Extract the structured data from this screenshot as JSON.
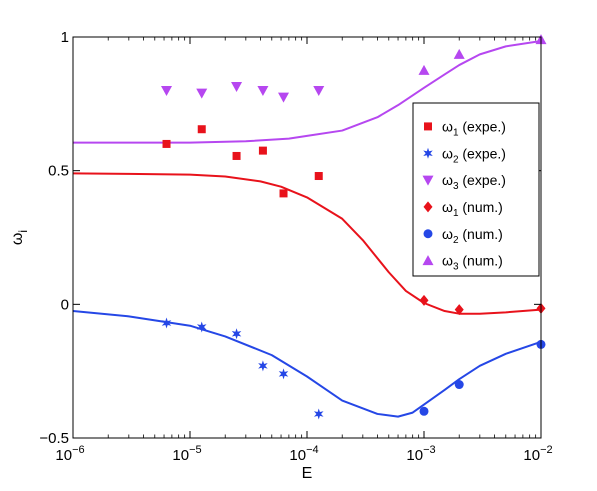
{
  "chart_data": {
    "type": "scatter",
    "title": "",
    "xlabel": "E",
    "ylabel": "ω_i",
    "xscale": "log",
    "xlim": [
      1e-06,
      0.01
    ],
    "ylim": [
      -0.5,
      1
    ],
    "grid": false,
    "legend_position": "right",
    "x_ticks": [
      {
        "value": 1e-06,
        "base": "10",
        "exp": "−6"
      },
      {
        "value": 1e-05,
        "base": "10",
        "exp": "−5"
      },
      {
        "value": 0.0001,
        "base": "10",
        "exp": "−4"
      },
      {
        "value": 0.001,
        "base": "10",
        "exp": "−3"
      },
      {
        "value": 0.01,
        "base": "10",
        "exp": "−2"
      }
    ],
    "y_ticks": [
      {
        "value": -0.5,
        "label": "−0.5"
      },
      {
        "value": 0,
        "label": "0"
      },
      {
        "value": 0.5,
        "label": "0.5"
      },
      {
        "value": 1,
        "label": "1"
      }
    ],
    "series": [
      {
        "name": "ω1 (expe.)",
        "sym": "ω",
        "sub": "1",
        "suffix": " (expe.)",
        "marker": "square",
        "color": "#e8121b",
        "points": [
          [
            6.3e-06,
            0.6
          ],
          [
            1.26e-05,
            0.655
          ],
          [
            2.5e-05,
            0.555
          ],
          [
            4.2e-05,
            0.575
          ],
          [
            6.3e-05,
            0.415
          ],
          [
            0.000126,
            0.48
          ]
        ]
      },
      {
        "name": "ω2 (expe.)",
        "sym": "ω",
        "sub": "2",
        "suffix": " (expe.)",
        "marker": "star",
        "color": "#2547e6",
        "points": [
          [
            6.3e-06,
            -0.07
          ],
          [
            1.26e-05,
            -0.085
          ],
          [
            2.5e-05,
            -0.11
          ],
          [
            4.2e-05,
            -0.23
          ],
          [
            6.3e-05,
            -0.26
          ],
          [
            0.000126,
            -0.41
          ]
        ]
      },
      {
        "name": "ω3 (expe.)",
        "sym": "ω",
        "sub": "3",
        "suffix": " (expe.)",
        "marker": "triangle-down",
        "color": "#b647f0",
        "points": [
          [
            6.3e-06,
            0.8
          ],
          [
            1.26e-05,
            0.79
          ],
          [
            2.5e-05,
            0.815
          ],
          [
            4.2e-05,
            0.8
          ],
          [
            6.3e-05,
            0.775
          ],
          [
            0.000126,
            0.8
          ]
        ]
      },
      {
        "name": "ω1 (num.)",
        "sym": "ω",
        "sub": "1",
        "suffix": " (num.)",
        "marker": "diamond",
        "color": "#e8121b",
        "points": [
          [
            0.001,
            0.015
          ],
          [
            0.002,
            -0.02
          ],
          [
            0.01,
            -0.015
          ]
        ]
      },
      {
        "name": "ω2 (num.)",
        "sym": "ω",
        "sub": "2",
        "suffix": " (num.)",
        "marker": "circle",
        "color": "#2547e6",
        "points": [
          [
            0.001,
            -0.4
          ],
          [
            0.002,
            -0.3
          ],
          [
            0.01,
            -0.15
          ]
        ]
      },
      {
        "name": "ω3 (num.)",
        "sym": "ω",
        "sub": "3",
        "suffix": " (num.)",
        "marker": "triangle-up",
        "color": "#b647f0",
        "points": [
          [
            0.001,
            0.875
          ],
          [
            0.002,
            0.935
          ],
          [
            0.01,
            0.99
          ]
        ]
      }
    ],
    "curves": [
      {
        "color": "#e8121b",
        "points": [
          [
            1e-06,
            0.49
          ],
          [
            3e-06,
            0.488
          ],
          [
            1e-05,
            0.485
          ],
          [
            2e-05,
            0.478
          ],
          [
            4e-05,
            0.46
          ],
          [
            6e-05,
            0.44
          ],
          [
            0.0001,
            0.4
          ],
          [
            0.0002,
            0.32
          ],
          [
            0.0003,
            0.24
          ],
          [
            0.0005,
            0.12
          ],
          [
            0.0007,
            0.05
          ],
          [
            0.001,
            0.005
          ],
          [
            0.0015,
            -0.025
          ],
          [
            0.002,
            -0.035
          ],
          [
            0.003,
            -0.035
          ],
          [
            0.005,
            -0.03
          ],
          [
            0.01,
            -0.02
          ]
        ]
      },
      {
        "color": "#2547e6",
        "points": [
          [
            1e-06,
            -0.025
          ],
          [
            3e-06,
            -0.045
          ],
          [
            1e-05,
            -0.08
          ],
          [
            2e-05,
            -0.12
          ],
          [
            5e-05,
            -0.19
          ],
          [
            0.0001,
            -0.27
          ],
          [
            0.0002,
            -0.36
          ],
          [
            0.0004,
            -0.41
          ],
          [
            0.0006,
            -0.42
          ],
          [
            0.0008,
            -0.405
          ],
          [
            0.001,
            -0.375
          ],
          [
            0.0015,
            -0.32
          ],
          [
            0.002,
            -0.28
          ],
          [
            0.003,
            -0.23
          ],
          [
            0.005,
            -0.185
          ],
          [
            0.01,
            -0.14
          ]
        ]
      },
      {
        "color": "#b647f0",
        "points": [
          [
            1e-06,
            0.605
          ],
          [
            1e-05,
            0.605
          ],
          [
            3e-05,
            0.61
          ],
          [
            7e-05,
            0.62
          ],
          [
            0.0001,
            0.63
          ],
          [
            0.0002,
            0.65
          ],
          [
            0.0004,
            0.7
          ],
          [
            0.0006,
            0.745
          ],
          [
            0.001,
            0.81
          ],
          [
            0.0015,
            0.86
          ],
          [
            0.002,
            0.895
          ],
          [
            0.003,
            0.935
          ],
          [
            0.005,
            0.965
          ],
          [
            0.01,
            0.985
          ]
        ]
      }
    ]
  }
}
